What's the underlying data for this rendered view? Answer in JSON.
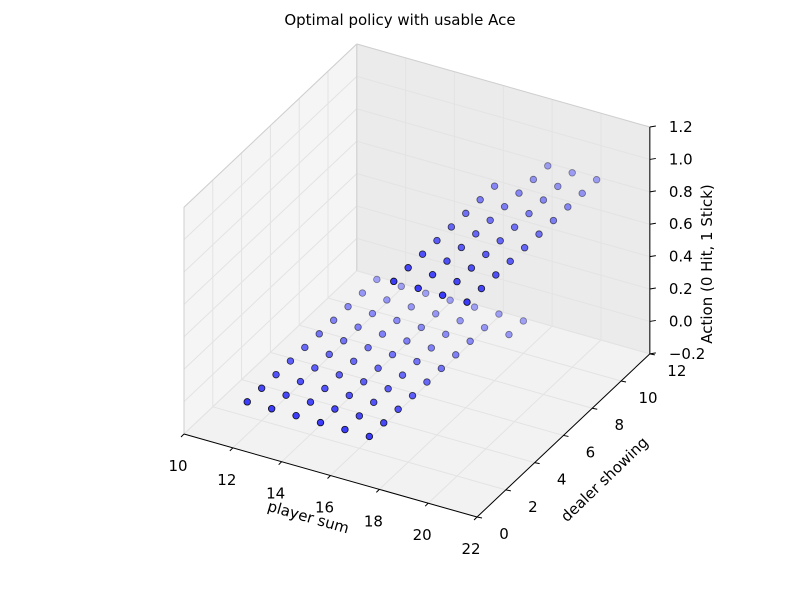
{
  "chart_data": {
    "type": "scatter",
    "projection": "3d",
    "title": "Optimal policy with usable Ace",
    "xlabel": "player sum",
    "ylabel": "dealer showing",
    "zlabel": "Action (0 Hit, 1 Stick)",
    "xlim": [
      10,
      22
    ],
    "ylim": [
      0,
      12
    ],
    "zlim": [
      -0.2,
      1.2
    ],
    "x_ticks": [
      "10",
      "12",
      "14",
      "16",
      "18",
      "20",
      "22"
    ],
    "y_ticks": [
      "0",
      "2",
      "4",
      "6",
      "8",
      "10",
      "12"
    ],
    "z_ticks": [
      "−0.2",
      "0.0",
      "0.2",
      "0.4",
      "0.6",
      "0.8",
      "1.0",
      "1.2"
    ],
    "grid": true,
    "marker_color": "#0000ff",
    "points": [
      [
        12,
        1,
        0
      ],
      [
        13,
        1,
        0
      ],
      [
        14,
        1,
        0
      ],
      [
        15,
        1,
        0
      ],
      [
        16,
        1,
        0
      ],
      [
        17,
        1,
        0
      ],
      [
        18,
        1,
        1
      ],
      [
        19,
        1,
        1
      ],
      [
        20,
        1,
        1
      ],
      [
        21,
        1,
        1
      ],
      [
        12,
        2,
        0
      ],
      [
        13,
        2,
        0
      ],
      [
        14,
        2,
        0
      ],
      [
        15,
        2,
        0
      ],
      [
        16,
        2,
        0
      ],
      [
        17,
        2,
        0
      ],
      [
        18,
        2,
        1
      ],
      [
        19,
        2,
        1
      ],
      [
        20,
        2,
        1
      ],
      [
        21,
        2,
        1
      ],
      [
        12,
        3,
        0
      ],
      [
        13,
        3,
        0
      ],
      [
        14,
        3,
        0
      ],
      [
        15,
        3,
        0
      ],
      [
        16,
        3,
        0
      ],
      [
        17,
        3,
        0
      ],
      [
        18,
        3,
        1
      ],
      [
        19,
        3,
        1
      ],
      [
        20,
        3,
        1
      ],
      [
        21,
        3,
        1
      ],
      [
        12,
        4,
        0
      ],
      [
        13,
        4,
        0
      ],
      [
        14,
        4,
        0
      ],
      [
        15,
        4,
        0
      ],
      [
        16,
        4,
        0
      ],
      [
        17,
        4,
        0
      ],
      [
        18,
        4,
        1
      ],
      [
        19,
        4,
        1
      ],
      [
        20,
        4,
        1
      ],
      [
        21,
        4,
        1
      ],
      [
        12,
        5,
        0
      ],
      [
        13,
        5,
        0
      ],
      [
        14,
        5,
        0
      ],
      [
        15,
        5,
        0
      ],
      [
        16,
        5,
        0
      ],
      [
        17,
        5,
        0
      ],
      [
        18,
        5,
        1
      ],
      [
        19,
        5,
        1
      ],
      [
        20,
        5,
        1
      ],
      [
        21,
        5,
        1
      ],
      [
        12,
        6,
        0
      ],
      [
        13,
        6,
        0
      ],
      [
        14,
        6,
        0
      ],
      [
        15,
        6,
        0
      ],
      [
        16,
        6,
        0
      ],
      [
        17,
        6,
        0
      ],
      [
        18,
        6,
        1
      ],
      [
        19,
        6,
        1
      ],
      [
        20,
        6,
        1
      ],
      [
        21,
        6,
        1
      ],
      [
        12,
        7,
        0
      ],
      [
        13,
        7,
        0
      ],
      [
        14,
        7,
        0
      ],
      [
        15,
        7,
        0
      ],
      [
        16,
        7,
        0
      ],
      [
        17,
        7,
        0
      ],
      [
        18,
        7,
        1
      ],
      [
        19,
        7,
        1
      ],
      [
        20,
        7,
        1
      ],
      [
        21,
        7,
        1
      ],
      [
        12,
        8,
        0
      ],
      [
        13,
        8,
        0
      ],
      [
        14,
        8,
        0
      ],
      [
        15,
        8,
        0
      ],
      [
        16,
        8,
        0
      ],
      [
        17,
        8,
        0
      ],
      [
        18,
        8,
        1
      ],
      [
        19,
        8,
        1
      ],
      [
        20,
        8,
        1
      ],
      [
        21,
        8,
        1
      ],
      [
        12,
        9,
        0
      ],
      [
        13,
        9,
        0
      ],
      [
        14,
        9,
        0
      ],
      [
        15,
        9,
        0
      ],
      [
        16,
        9,
        0
      ],
      [
        17,
        9,
        0
      ],
      [
        18,
        9,
        0
      ],
      [
        19,
        9,
        1
      ],
      [
        20,
        9,
        1
      ],
      [
        21,
        9,
        1
      ],
      [
        12,
        10,
        0
      ],
      [
        13,
        10,
        0
      ],
      [
        14,
        10,
        0
      ],
      [
        15,
        10,
        0
      ],
      [
        16,
        10,
        0
      ],
      [
        17,
        10,
        0
      ],
      [
        18,
        10,
        0
      ],
      [
        19,
        10,
        1
      ],
      [
        20,
        10,
        1
      ],
      [
        21,
        10,
        1
      ]
    ]
  }
}
